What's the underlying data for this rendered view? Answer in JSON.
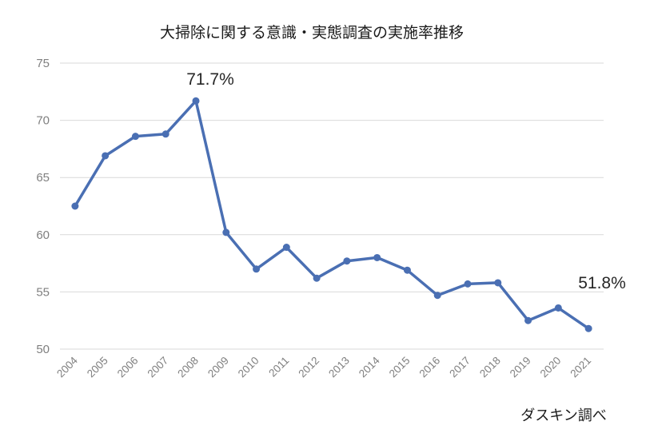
{
  "chart_data": {
    "type": "line",
    "title": "大掃除に関する意識・実態調査の実施率推移",
    "source": "ダスキン調べ",
    "categories": [
      "2004",
      "2005",
      "2006",
      "2007",
      "2008",
      "2009",
      "2010",
      "2011",
      "2012",
      "2013",
      "2014",
      "2015",
      "2016",
      "2017",
      "2018",
      "2019",
      "2020",
      "2021"
    ],
    "series": [
      {
        "values": [
          62.5,
          66.9,
          68.6,
          68.8,
          71.7,
          60.2,
          57.0,
          58.9,
          56.2,
          57.7,
          58.0,
          56.9,
          54.7,
          55.7,
          55.8,
          52.5,
          53.6,
          51.8
        ]
      }
    ],
    "ylim": [
      50,
      75
    ],
    "yticks": [
      50,
      55,
      60,
      65,
      70,
      75
    ],
    "grid": true,
    "color": "#4a6fb3",
    "annotations": [
      {
        "category": "2008",
        "text": "71.7%"
      },
      {
        "category": "2021",
        "text": "51.8%"
      }
    ]
  }
}
